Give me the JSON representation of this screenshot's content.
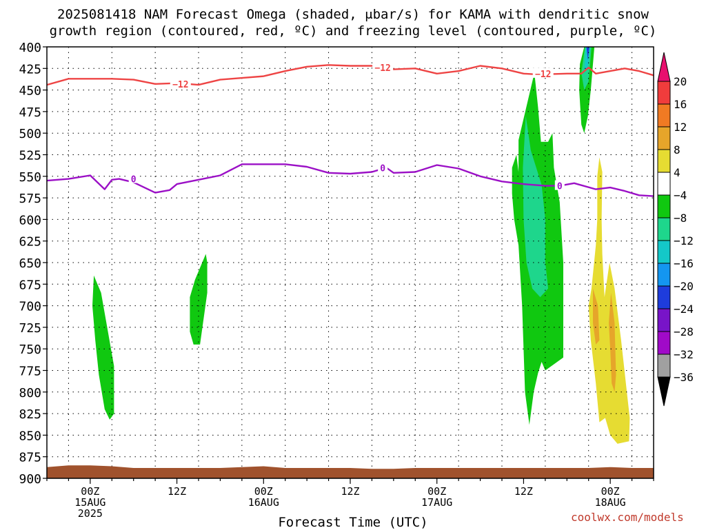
{
  "title": {
    "line1": "2025081418 NAM Forecast Omega (shaded, μbar/s) for KAMA with dendritic snow",
    "line2": "growth region (contoured, red, ºC) and freezing level (contoured, purple, ºC)"
  },
  "credit": "coolwx.com/models",
  "chart_data": {
    "type": "heatmap",
    "title": "2025081418 NAM Forecast Omega (shaded, μbar/s) for KAMA with dendritic snow growth region (contoured, red, ºC) and freezing level (contoured, purple, ºC)",
    "xlabel": "Forecast Time (UTC)",
    "ylabel": "",
    "x_unit": "forecast hour from 2025081418",
    "xlim": [
      0,
      84
    ],
    "y_unit": "mb",
    "ylim": [
      900,
      400
    ],
    "y_ticks": [
      400,
      425,
      450,
      475,
      500,
      525,
      550,
      575,
      600,
      625,
      650,
      675,
      700,
      725,
      750,
      775,
      800,
      825,
      850,
      875,
      900
    ],
    "x_ticks": [
      {
        "hour": 6,
        "label": "00Z",
        "date": "15AUG",
        "year": "2025"
      },
      {
        "hour": 18,
        "label": "12Z",
        "date": "",
        "year": ""
      },
      {
        "hour": 30,
        "label": "00Z",
        "date": "16AUG",
        "year": ""
      },
      {
        "hour": 42,
        "label": "12Z",
        "date": "",
        "year": ""
      },
      {
        "hour": 54,
        "label": "00Z",
        "date": "17AUG",
        "year": ""
      },
      {
        "hour": 66,
        "label": "12Z",
        "date": "",
        "year": ""
      },
      {
        "hour": 78,
        "label": "00Z",
        "date": "18AUG",
        "year": ""
      }
    ],
    "grid": true,
    "colorbar": {
      "labels": [
        "20",
        "16",
        "12",
        "8",
        "4",
        "−4",
        "−8",
        "−12",
        "−16",
        "−20",
        "−24",
        "−28",
        "−32",
        "−36"
      ],
      "colors": [
        "#e8106e",
        "#f03c3c",
        "#f07a23",
        "#e6a52a",
        "#e6dc32",
        "#ffffff",
        "#10c810",
        "#1ed68c",
        "#14c8c8",
        "#1496f0",
        "#1e3cdc",
        "#7814c8",
        "#a00ac8",
        "#a0a0a0",
        "#000000"
      ]
    },
    "series": [
      {
        "name": "-12",
        "color": "#ee4444",
        "label": "−12",
        "points": [
          [
            0,
            444
          ],
          [
            3,
            437
          ],
          [
            6,
            437
          ],
          [
            9,
            437
          ],
          [
            12,
            438
          ],
          [
            15,
            443
          ],
          [
            18,
            442
          ],
          [
            21,
            444
          ],
          [
            24,
            438
          ],
          [
            27,
            436
          ],
          [
            30,
            434
          ],
          [
            33,
            428
          ],
          [
            36,
            423
          ],
          [
            39,
            421
          ],
          [
            42,
            422
          ],
          [
            45,
            422
          ],
          [
            48,
            426
          ],
          [
            51,
            425
          ],
          [
            54,
            431
          ],
          [
            57,
            428
          ],
          [
            60,
            422
          ],
          [
            63,
            425
          ],
          [
            66,
            431
          ],
          [
            68,
            432
          ],
          [
            72,
            431
          ],
          [
            74,
            431
          ],
          [
            75,
            424
          ],
          [
            76,
            431
          ],
          [
            78,
            428
          ],
          [
            80,
            425
          ],
          [
            82,
            428
          ],
          [
            84,
            433
          ]
        ],
        "label_positions": [
          [
            18.5,
            443
          ],
          [
            46.5,
            424
          ],
          [
            68.7,
            431
          ]
        ]
      },
      {
        "name": "0",
        "color": "#9b10c6",
        "label": "0",
        "points": [
          [
            0,
            555
          ],
          [
            3,
            553
          ],
          [
            6,
            549
          ],
          [
            8,
            565
          ],
          [
            9,
            554
          ],
          [
            10,
            553
          ],
          [
            12,
            557
          ],
          [
            15,
            569
          ],
          [
            17,
            566
          ],
          [
            18,
            559
          ],
          [
            21,
            554
          ],
          [
            24,
            549
          ],
          [
            27,
            536
          ],
          [
            30,
            536
          ],
          [
            33,
            536
          ],
          [
            36,
            539
          ],
          [
            39,
            546
          ],
          [
            42,
            547
          ],
          [
            45,
            545
          ],
          [
            47,
            540
          ],
          [
            48,
            546
          ],
          [
            51,
            545
          ],
          [
            54,
            537
          ],
          [
            57,
            541
          ],
          [
            60,
            550
          ],
          [
            63,
            556
          ],
          [
            66,
            559
          ],
          [
            69,
            561
          ],
          [
            71,
            561
          ],
          [
            73,
            558
          ],
          [
            76,
            565
          ],
          [
            78,
            563
          ],
          [
            80,
            567
          ],
          [
            82,
            572
          ],
          [
            84,
            573
          ]
        ],
        "label_positions": [
          [
            12,
            553
          ],
          [
            46.5,
            540
          ],
          [
            71,
            561
          ]
        ]
      },
      {
        "name": "freezing-surface",
        "color": "#a0522d",
        "label": "",
        "points": [
          [
            0,
            887
          ],
          [
            3,
            885
          ],
          [
            6,
            885
          ],
          [
            9,
            886
          ],
          [
            12,
            888
          ],
          [
            15,
            888
          ],
          [
            18,
            888
          ],
          [
            21,
            888
          ],
          [
            24,
            888
          ],
          [
            27,
            887
          ],
          [
            30,
            886
          ],
          [
            33,
            888
          ],
          [
            36,
            888
          ],
          [
            39,
            888
          ],
          [
            42,
            888
          ],
          [
            45,
            889
          ],
          [
            48,
            889
          ],
          [
            51,
            888
          ],
          [
            54,
            888
          ],
          [
            57,
            888
          ],
          [
            60,
            888
          ],
          [
            63,
            888
          ],
          [
            66,
            888
          ],
          [
            69,
            888
          ],
          [
            72,
            888
          ],
          [
            75,
            888
          ],
          [
            78,
            887
          ],
          [
            81,
            888
          ],
          [
            84,
            888
          ]
        ],
        "label_positions": []
      }
    ],
    "shaded_regions": [
      {
        "range": "-8 to -4",
        "color": "#10c810",
        "points": [
          [
            6.5,
            665
          ],
          [
            7.5,
            685
          ],
          [
            9.3,
            770
          ],
          [
            9.3,
            825
          ],
          [
            8.7,
            832
          ],
          [
            8.0,
            820
          ],
          [
            7.2,
            780
          ],
          [
            6.7,
            740
          ],
          [
            6.3,
            700
          ]
        ]
      },
      {
        "range": "-8 to -4",
        "color": "#10c810",
        "points": [
          [
            22.0,
            640
          ],
          [
            22.2,
            650
          ],
          [
            22.2,
            685
          ],
          [
            21.2,
            745
          ],
          [
            20.3,
            745
          ],
          [
            19.8,
            730
          ],
          [
            19.8,
            690
          ],
          [
            20.5,
            670
          ]
        ]
      },
      {
        "range": "-8 to -4",
        "color": "#10c810",
        "points": [
          [
            67.5,
            430
          ],
          [
            68.0,
            470
          ],
          [
            68.4,
            510
          ],
          [
            69.4,
            510
          ],
          [
            70.0,
            500
          ],
          [
            70.2,
            540
          ],
          [
            71.0,
            580
          ],
          [
            71.5,
            650
          ],
          [
            71.5,
            760
          ],
          [
            69.0,
            775
          ],
          [
            68.5,
            765
          ],
          [
            68.0,
            778
          ],
          [
            67.4,
            800
          ],
          [
            66.8,
            838
          ],
          [
            66.2,
            800
          ],
          [
            65.8,
            700
          ],
          [
            65.3,
            630
          ],
          [
            64.7,
            600
          ],
          [
            64.4,
            570
          ],
          [
            64.4,
            540
          ],
          [
            65.0,
            525
          ],
          [
            65.3,
            545
          ],
          [
            65.3,
            508
          ]
        ]
      },
      {
        "range": "-12 to -8",
        "color": "#1ed68c",
        "points": [
          [
            66.3,
            480
          ],
          [
            67.0,
            520
          ],
          [
            68.5,
            560
          ],
          [
            69.0,
            600
          ],
          [
            69.0,
            650
          ],
          [
            69.4,
            680
          ],
          [
            68.3,
            690
          ],
          [
            67.2,
            680
          ],
          [
            66.4,
            650
          ],
          [
            66.0,
            600
          ],
          [
            65.9,
            540
          ]
        ]
      },
      {
        "range": "-8 to -4",
        "color": "#10c810",
        "points": [
          [
            74.4,
            400
          ],
          [
            75.8,
            400
          ],
          [
            75.3,
            450
          ],
          [
            74.9,
            480
          ],
          [
            74.4,
            500
          ],
          [
            74.0,
            490
          ],
          [
            73.7,
            450
          ],
          [
            73.8,
            420
          ]
        ]
      },
      {
        "range": "-12 to -8",
        "color": "#1ed68c",
        "points": [
          [
            74.5,
            400
          ],
          [
            75.4,
            400
          ],
          [
            75.0,
            440
          ],
          [
            74.4,
            450
          ],
          [
            74.0,
            430
          ]
        ]
      },
      {
        "range": "-16 to -12",
        "color": "#14c8c8",
        "points": [
          [
            74.6,
            400
          ],
          [
            75.2,
            400
          ],
          [
            74.9,
            425
          ],
          [
            74.4,
            430
          ]
        ]
      },
      {
        "range": "-24 to -20",
        "color": "#1e3cdc",
        "points": [
          [
            74.7,
            400
          ],
          [
            75.1,
            400
          ],
          [
            74.9,
            415
          ]
        ]
      },
      {
        "range": "4 to 8",
        "color": "#e6dc32",
        "points": [
          [
            76.5,
            528
          ],
          [
            76.9,
            545
          ],
          [
            76.8,
            600
          ],
          [
            76.9,
            640
          ],
          [
            77.2,
            690
          ],
          [
            77.9,
            650
          ],
          [
            78.6,
            680
          ],
          [
            79.5,
            740
          ],
          [
            80.3,
            800
          ],
          [
            80.7,
            830
          ],
          [
            80.6,
            857
          ],
          [
            79.0,
            860
          ],
          [
            78.0,
            850
          ],
          [
            77.3,
            830
          ],
          [
            76.5,
            835
          ],
          [
            76.0,
            790
          ],
          [
            75.3,
            740
          ],
          [
            75.0,
            700
          ],
          [
            75.4,
            680
          ],
          [
            76.0,
            630
          ],
          [
            76.2,
            600
          ],
          [
            76.2,
            550
          ]
        ]
      },
      {
        "range": "8 to 12",
        "color": "#e6a52a",
        "points": [
          [
            75.6,
            680
          ],
          [
            76.3,
            700
          ],
          [
            76.5,
            740
          ],
          [
            76.0,
            745
          ],
          [
            75.6,
            720
          ]
        ]
      },
      {
        "range": "8 to 12",
        "color": "#e6a52a",
        "points": [
          [
            78.1,
            685
          ],
          [
            78.6,
            720
          ],
          [
            78.8,
            780
          ],
          [
            78.6,
            800
          ],
          [
            78.2,
            790
          ],
          [
            78.0,
            750
          ],
          [
            77.8,
            720
          ]
        ]
      }
    ]
  }
}
